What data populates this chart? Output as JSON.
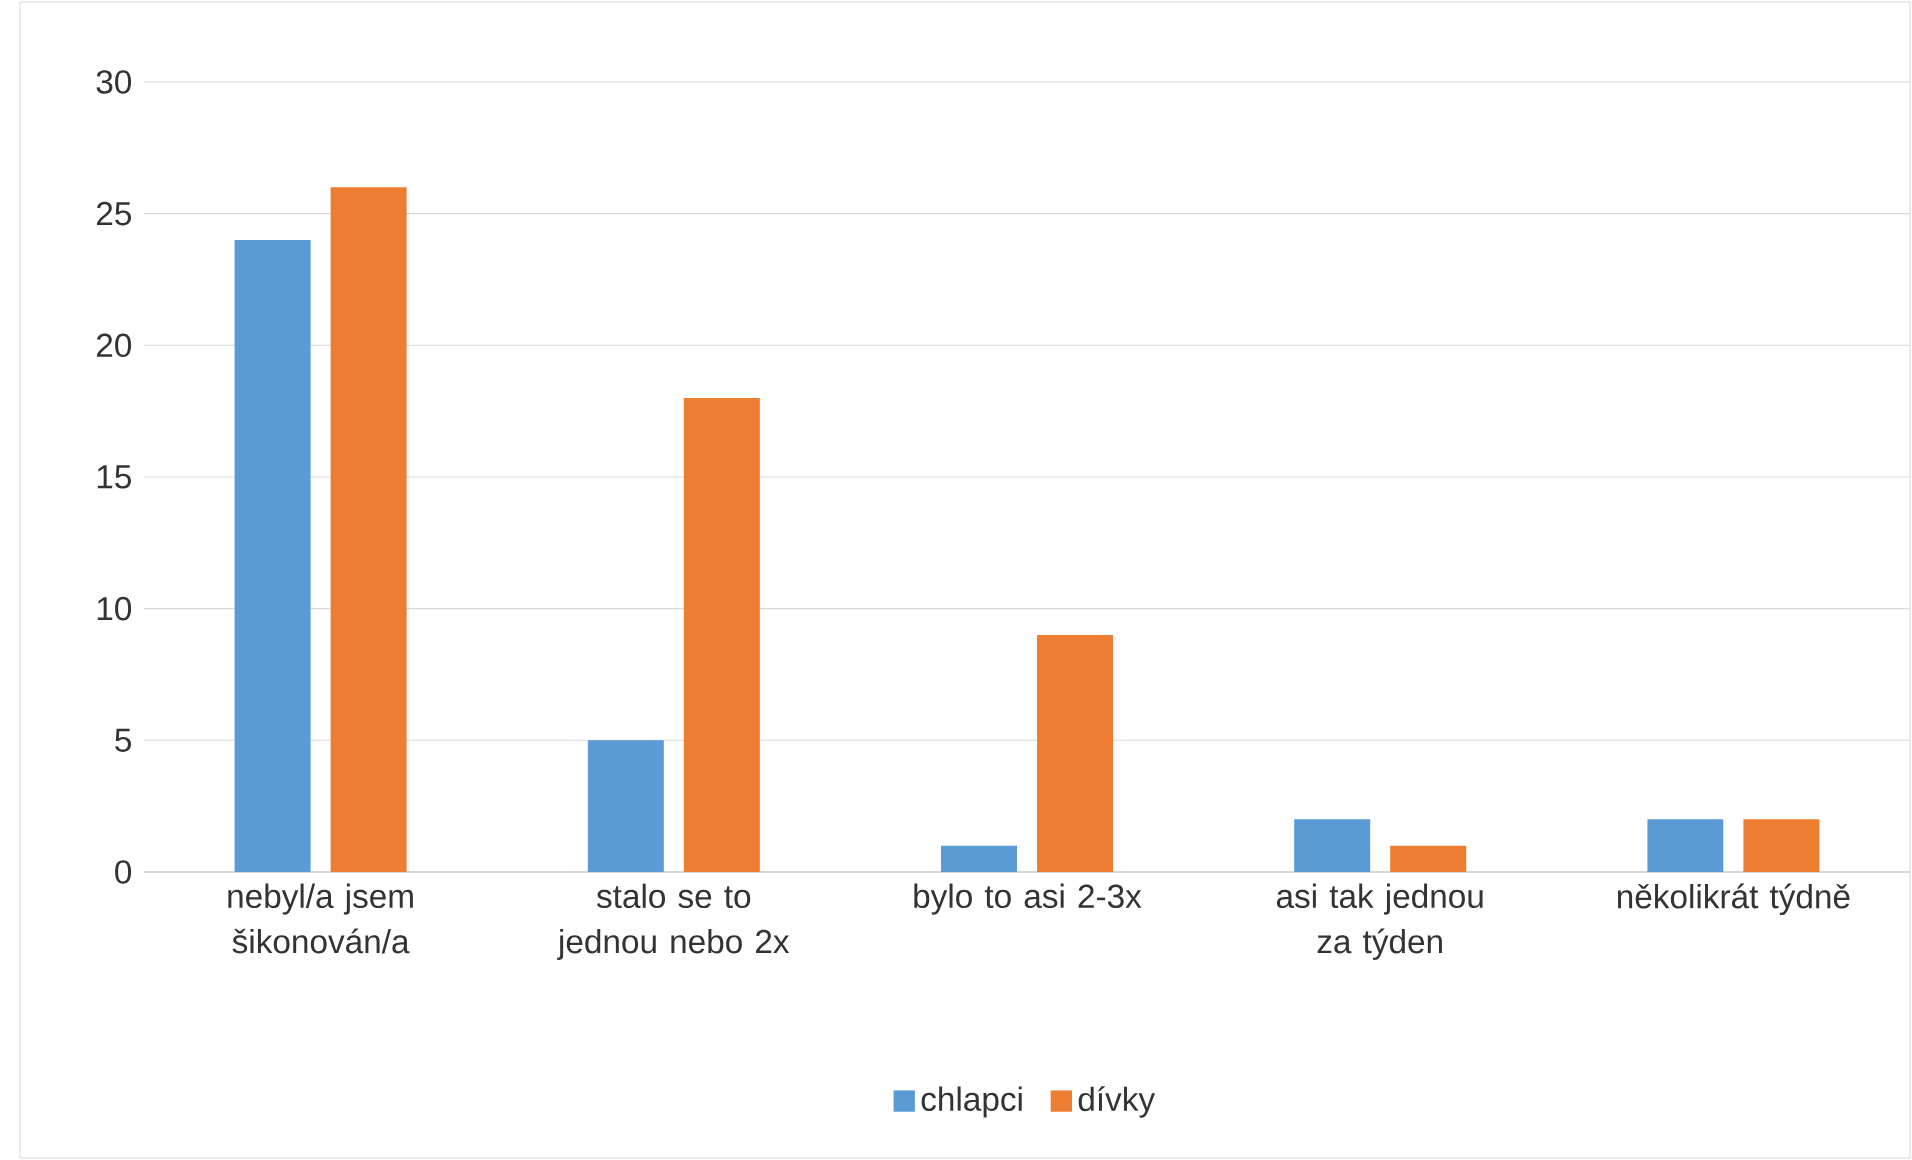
{
  "chart_data": {
    "type": "bar",
    "categories": [
      "nebyl/a jsem šikonován/a",
      "stalo se to jednou nebo 2x",
      "bylo to asi 2-3x",
      "asi tak jednou za týden",
      "několikrát týdně"
    ],
    "series": [
      {
        "name": "chlapci",
        "color": "#5b9bd5",
        "values": [
          24,
          5,
          1,
          2,
          2
        ]
      },
      {
        "name": "dívky",
        "color": "#ed7d31",
        "values": [
          26,
          18,
          9,
          1,
          2
        ]
      }
    ],
    "ylim": [
      0,
      30
    ],
    "yticks": [
      0,
      5,
      10,
      15,
      20,
      25,
      30
    ],
    "grid": "y",
    "legend": "bottom"
  }
}
